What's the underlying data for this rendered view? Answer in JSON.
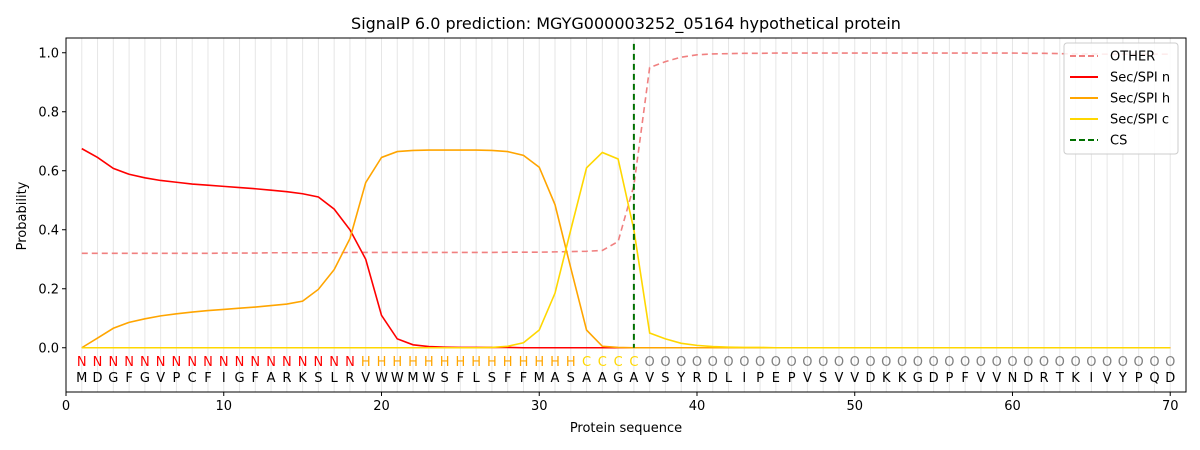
{
  "chart_data": {
    "type": "line",
    "title": "SignalP 6.0 prediction: MGYG000003252_05164 hypothetical protein",
    "xlabel": "Protein sequence",
    "ylabel": "Probability",
    "xlim": [
      0,
      71
    ],
    "ylim": [
      -0.15,
      1.05
    ],
    "x_ticks": [
      0,
      10,
      20,
      30,
      40,
      50,
      60,
      70
    ],
    "y_ticks": [
      0.0,
      0.2,
      0.4,
      0.6,
      0.8,
      1.0
    ],
    "x_tick_labels": [
      "0",
      "10",
      "20",
      "30",
      "40",
      "50",
      "60",
      "70"
    ],
    "y_tick_labels": [
      "0.0",
      "0.2",
      "0.4",
      "0.6",
      "0.8",
      "1.0"
    ],
    "grid": "vertical at each residue",
    "legend_position": "upper right",
    "sequence": [
      "M",
      "D",
      "G",
      "F",
      "G",
      "V",
      "P",
      "C",
      "F",
      "I",
      "G",
      "F",
      "A",
      "R",
      "K",
      "S",
      "L",
      "R",
      "V",
      "W",
      "W",
      "M",
      "W",
      "S",
      "F",
      "L",
      "S",
      "F",
      "F",
      "M",
      "A",
      "S",
      "A",
      "A",
      "G",
      "A",
      "V",
      "S",
      "Y",
      "R",
      "D",
      "L",
      "I",
      "P",
      "E",
      "P",
      "V",
      "S",
      "V",
      "V",
      "D",
      "K",
      "K",
      "G",
      "D",
      "P",
      "F",
      "V",
      "V",
      "N",
      "D",
      "R",
      "T",
      "K",
      "I",
      "V",
      "Y",
      "P",
      "Q",
      "D"
    ],
    "labels": [
      "N",
      "N",
      "N",
      "N",
      "N",
      "N",
      "N",
      "N",
      "N",
      "N",
      "N",
      "N",
      "N",
      "N",
      "N",
      "N",
      "N",
      "N",
      "H",
      "H",
      "H",
      "H",
      "H",
      "H",
      "H",
      "H",
      "H",
      "H",
      "H",
      "H",
      "H",
      "H",
      "C",
      "C",
      "C",
      "C",
      "O",
      "O",
      "O",
      "O",
      "O",
      "O",
      "O",
      "O",
      "O",
      "O",
      "O",
      "O",
      "O",
      "O",
      "O",
      "O",
      "O",
      "O",
      "O",
      "O",
      "O",
      "O",
      "O",
      "O",
      "O",
      "O",
      "O",
      "O",
      "O",
      "O",
      "O",
      "O",
      "O",
      "O"
    ],
    "label_colors": {
      "N": "#ff0000",
      "H": "#ffa500",
      "C": "#ffd700",
      "O": "#808080"
    },
    "cleavage_site": 36,
    "series": [
      {
        "name": "OTHER",
        "color": "#f08080",
        "dash": "dashed",
        "values": [
          0.32,
          0.32,
          0.32,
          0.32,
          0.32,
          0.32,
          0.32,
          0.32,
          0.32,
          0.321,
          0.321,
          0.321,
          0.322,
          0.322,
          0.322,
          0.322,
          0.322,
          0.323,
          0.323,
          0.323,
          0.323,
          0.323,
          0.323,
          0.323,
          0.323,
          0.323,
          0.323,
          0.324,
          0.324,
          0.324,
          0.325,
          0.326,
          0.327,
          0.33,
          0.36,
          0.55,
          0.95,
          0.97,
          0.985,
          0.993,
          0.996,
          0.997,
          0.998,
          0.998,
          0.999,
          0.999,
          0.999,
          0.999,
          0.999,
          0.999,
          0.999,
          0.999,
          0.999,
          0.999,
          0.999,
          0.999,
          0.999,
          0.999,
          0.999,
          0.999,
          0.998,
          0.998,
          0.997,
          0.996,
          0.996,
          0.995,
          0.995,
          0.995,
          0.995,
          0.995
        ]
      },
      {
        "name": "Sec/SPI n",
        "color": "#ff0000",
        "dash": "solid",
        "values": [
          0.675,
          0.645,
          0.608,
          0.588,
          0.576,
          0.567,
          0.561,
          0.555,
          0.551,
          0.547,
          0.543,
          0.539,
          0.534,
          0.529,
          0.522,
          0.511,
          0.47,
          0.4,
          0.3,
          0.11,
          0.03,
          0.01,
          0.004,
          0.002,
          0.001,
          0.001,
          0.001,
          0.001,
          0.0,
          0.0,
          0.0,
          0.0,
          0.0,
          0.0,
          0.0,
          0.0,
          0.0,
          0.0,
          0.0,
          0.0,
          0.0,
          0.0,
          0.0,
          0.0,
          0.0,
          0.0,
          0.0,
          0.0,
          0.0,
          0.0,
          0.0,
          0.0,
          0.0,
          0.0,
          0.0,
          0.0,
          0.0,
          0.0,
          0.0,
          0.0,
          0.0,
          0.0,
          0.0,
          0.0,
          0.0,
          0.0,
          0.0,
          0.0,
          0.0,
          0.0
        ]
      },
      {
        "name": "Sec/SPI h",
        "color": "#ffa500",
        "dash": "solid",
        "values": [
          0.0,
          0.033,
          0.066,
          0.086,
          0.098,
          0.108,
          0.115,
          0.121,
          0.126,
          0.13,
          0.134,
          0.138,
          0.143,
          0.148,
          0.158,
          0.198,
          0.265,
          0.37,
          0.56,
          0.645,
          0.665,
          0.669,
          0.67,
          0.67,
          0.67,
          0.67,
          0.669,
          0.665,
          0.652,
          0.612,
          0.485,
          0.27,
          0.06,
          0.005,
          0.001,
          0.0,
          0.0,
          0.0,
          0.0,
          0.0,
          0.0,
          0.0,
          0.0,
          0.0,
          0.0,
          0.0,
          0.0,
          0.0,
          0.0,
          0.0,
          0.0,
          0.0,
          0.0,
          0.0,
          0.0,
          0.0,
          0.0,
          0.0,
          0.0,
          0.0,
          0.0,
          0.0,
          0.0,
          0.0,
          0.0,
          0.0,
          0.0,
          0.0,
          0.0,
          0.0
        ]
      },
      {
        "name": "Sec/SPI c",
        "color": "#ffd700",
        "dash": "solid",
        "values": [
          0.0,
          0.0,
          0.0,
          0.0,
          0.0,
          0.0,
          0.0,
          0.0,
          0.0,
          0.0,
          0.0,
          0.0,
          0.0,
          0.0,
          0.0,
          0.0,
          0.0,
          0.0,
          0.0,
          0.0,
          0.0,
          0.0,
          0.0,
          0.0,
          0.0,
          0.0,
          0.001,
          0.005,
          0.017,
          0.06,
          0.185,
          0.4,
          0.61,
          0.662,
          0.64,
          0.4,
          0.05,
          0.03,
          0.015,
          0.008,
          0.004,
          0.002,
          0.001,
          0.001,
          0.0,
          0.0,
          0.0,
          0.0,
          0.0,
          0.0,
          0.0,
          0.0,
          0.0,
          0.0,
          0.0,
          0.0,
          0.0,
          0.0,
          0.0,
          0.0,
          0.0,
          0.0,
          0.0,
          0.0,
          0.0,
          0.0,
          0.0,
          0.0,
          0.0,
          0.0
        ]
      },
      {
        "name": "CS",
        "color": "#007000",
        "dash": "dashed",
        "vertical_at": 36
      }
    ]
  }
}
